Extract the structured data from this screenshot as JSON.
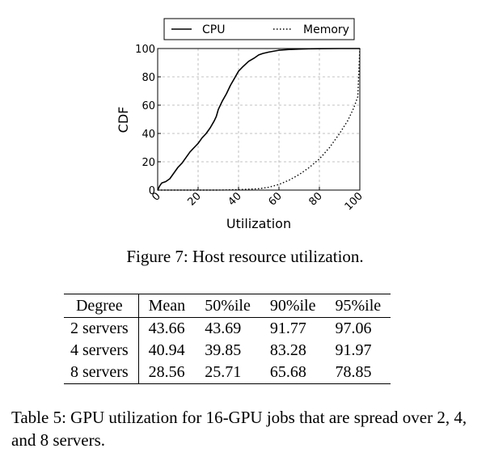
{
  "figure": {
    "caption": "Figure 7:  Host resource utilization."
  },
  "chart_data": {
    "type": "line",
    "xlabel": "Utilization",
    "ylabel": "CDF",
    "xlim": [
      0,
      100
    ],
    "ylim": [
      0,
      100
    ],
    "xticks": [
      "0",
      "20",
      "40",
      "60",
      "80",
      "100"
    ],
    "yticks": [
      "0",
      "20",
      "40",
      "60",
      "80",
      "100"
    ],
    "grid": true,
    "legend": "top-center",
    "series": [
      {
        "name": "CPU",
        "style": "solid",
        "x": [
          0,
          1,
          2,
          4,
          6,
          8,
          10,
          12,
          14,
          16,
          18,
          20,
          22,
          24,
          26,
          28,
          29,
          30,
          32,
          34,
          36,
          38,
          40,
          42,
          45,
          48,
          50,
          52,
          55,
          58,
          60,
          65,
          70,
          75,
          80,
          90,
          100
        ],
        "y": [
          0,
          3,
          5,
          6,
          8,
          12,
          16,
          19,
          23,
          27,
          30,
          33,
          37,
          40,
          44,
          49,
          52,
          57,
          63,
          68,
          74,
          79,
          84,
          87,
          91,
          93.5,
          95.5,
          96.5,
          97.5,
          98.3,
          98.8,
          99.3,
          99.6,
          99.8,
          99.9,
          100,
          100
        ]
      },
      {
        "name": "Memory",
        "style": "dotted",
        "x": [
          0,
          30,
          40,
          50,
          55,
          60,
          65,
          70,
          75,
          80,
          85,
          90,
          94,
          97,
          99,
          100
        ],
        "y": [
          0,
          0,
          0.3,
          1,
          2,
          4,
          7,
          11,
          16,
          22,
          30,
          40,
          49,
          58,
          66,
          100
        ]
      }
    ]
  },
  "table": {
    "headers": [
      "Degree",
      "Mean",
      "50%ile",
      "90%ile",
      "95%ile"
    ],
    "rows": [
      [
        "2 servers",
        "43.66",
        "43.69",
        "91.77",
        "97.06"
      ],
      [
        "4 servers",
        "40.94",
        "39.85",
        "83.28",
        "91.97"
      ],
      [
        "8 servers",
        "28.56",
        "25.71",
        "65.68",
        "78.85"
      ]
    ],
    "caption": "Table 5: GPU utilization for 16-GPU jobs that are spread over 2, 4, and 8 servers."
  }
}
